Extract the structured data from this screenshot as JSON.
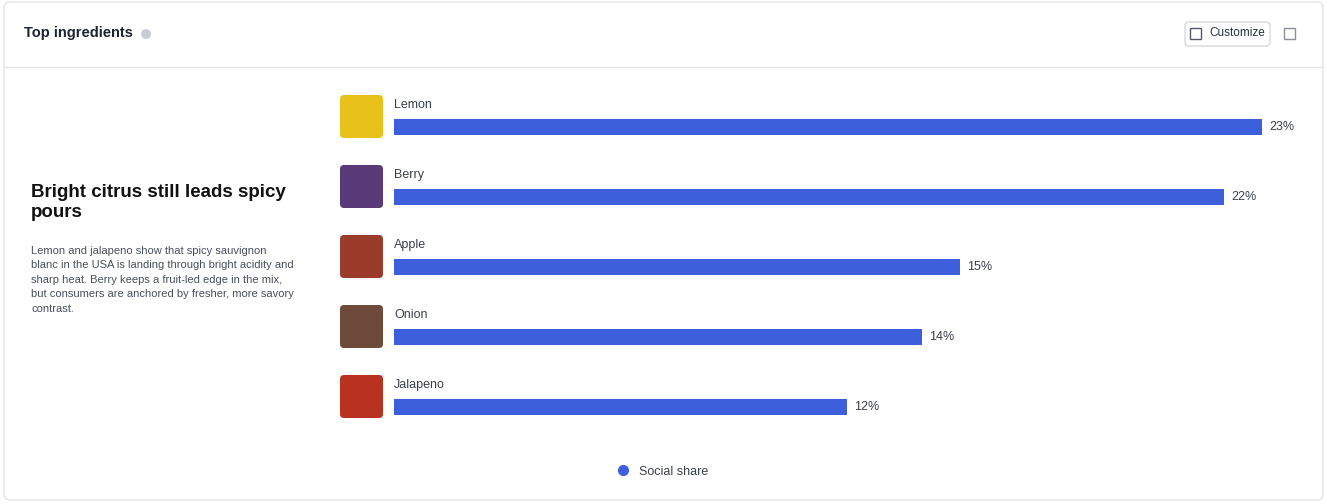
{
  "toolbar": {
    "button": "Customize"
  },
  "chart_data": {
    "type": "bar",
    "orientation": "horizontal",
    "title": "Top ingredients",
    "heading": "Bright citrus still leads spicy pours",
    "description": "Lemon and jalapeno show that spicy sauvignon blanc in the USA is landing through bright acidity and sharp heat. Berry keeps a fruit-led edge in the mix, but consumers are anchored by fresher, more savory contrast.",
    "categories": [
      "Lemon",
      "Berry",
      "Apple",
      "Onion",
      "Jalapeno"
    ],
    "series": [
      {
        "name": "Social share",
        "color": "#3d5fdc",
        "values": [
          23,
          22,
          15,
          14,
          12
        ],
        "value_labels": [
          "23%",
          "22%",
          "15%",
          "14%",
          "12%"
        ]
      }
    ],
    "xlim": [
      0,
      23
    ],
    "tick_labels": false,
    "data_labels": true,
    "legend": "lower center"
  }
}
